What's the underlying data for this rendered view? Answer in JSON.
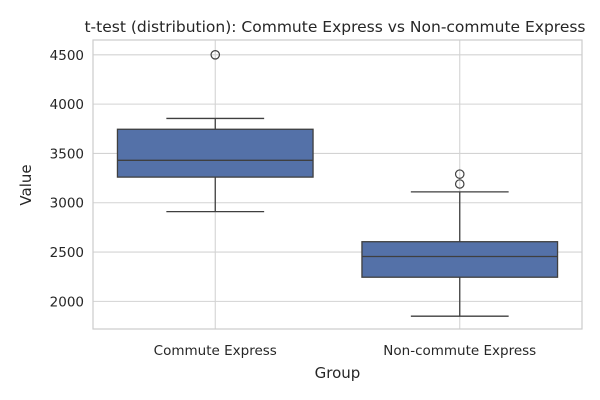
{
  "chart_data": {
    "type": "box",
    "title": "t-test (distribution): Commute Express vs Non-commute Express",
    "xlabel": "Group",
    "ylabel": "Value",
    "ylim": [
      1720,
      4650
    ],
    "yticks": [
      2000,
      2500,
      3000,
      3500,
      4000,
      4500
    ],
    "grid": true,
    "legend": "none",
    "categories": [
      "Commute Express",
      "Non-commute Express"
    ],
    "boxes": [
      {
        "category": "Commute Express",
        "whisker_low": 2910,
        "q1": 3260,
        "median": 3430,
        "q3": 3745,
        "whisker_high": 3855,
        "outliers": [
          4500
        ]
      },
      {
        "category": "Non-commute Express",
        "whisker_low": 1850,
        "q1": 2245,
        "median": 2455,
        "q3": 2605,
        "whisker_high": 3110,
        "outliers": [
          3190,
          3290
        ]
      }
    ],
    "colors": {
      "box_fill": "#5471a8",
      "line": "#3f3f3f",
      "grid": "#d3d3d3",
      "axes": "#cccccc"
    }
  }
}
